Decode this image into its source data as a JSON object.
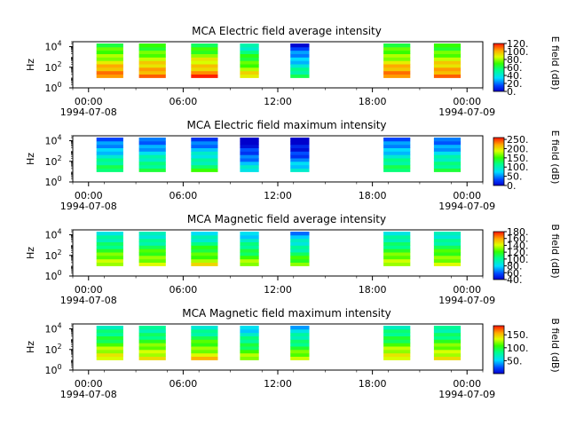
{
  "chart_data": [
    {
      "type": "heatmap",
      "title": "MCA  Electric field average intensity",
      "ylabel": "Hz",
      "y_scale": "log",
      "ylim": [
        1,
        30000
      ],
      "yticks": [
        {
          "exp": "0"
        },
        {
          "exp": "2"
        },
        {
          "exp": "4"
        }
      ],
      "xlim_hours": [
        -1,
        25
      ],
      "xticks": [
        {
          "h": 0,
          "time": "00:00",
          "date": "1994-07-08"
        },
        {
          "h": 6,
          "time": "06:00",
          "date": ""
        },
        {
          "h": 12,
          "time": "12:00",
          "date": ""
        },
        {
          "h": 18,
          "time": "18:00",
          "date": ""
        },
        {
          "h": 24,
          "time": "00:00",
          "date": "1994-07-09"
        }
      ],
      "colorbar": {
        "label": "E field (dB)",
        "min": 0,
        "max": 120,
        "ticks": [
          "0.",
          "20.",
          "40.",
          "60.",
          "80.",
          "100.",
          "120."
        ]
      },
      "blocks": [
        {
          "start": 0.5,
          "end": 2.2,
          "level": 0.7
        },
        {
          "start": 3.2,
          "end": 4.9,
          "level": 0.7
        },
        {
          "start": 6.5,
          "end": 8.2,
          "level": 0.7
        },
        {
          "start": 9.6,
          "end": 10.8,
          "level": 0.55
        },
        {
          "start": 12.8,
          "end": 14.0,
          "level": 0.25
        },
        {
          "start": 18.7,
          "end": 20.4,
          "level": 0.7
        },
        {
          "start": 21.9,
          "end": 23.6,
          "level": 0.7
        }
      ]
    },
    {
      "type": "heatmap",
      "title": "MCA  Electric field maximum intensity",
      "ylabel": "Hz",
      "y_scale": "log",
      "ylim": [
        1,
        30000
      ],
      "yticks": [
        {
          "exp": "0"
        },
        {
          "exp": "2"
        },
        {
          "exp": "4"
        }
      ],
      "xlim_hours": [
        -1,
        25
      ],
      "xticks": [
        {
          "h": 0,
          "time": "00:00",
          "date": "1994-07-08"
        },
        {
          "h": 6,
          "time": "06:00",
          "date": ""
        },
        {
          "h": 12,
          "time": "12:00",
          "date": ""
        },
        {
          "h": 18,
          "time": "18:00",
          "date": ""
        },
        {
          "h": 24,
          "time": "00:00",
          "date": "1994-07-09"
        }
      ],
      "colorbar": {
        "label": "E field (dB)",
        "min": 0,
        "max": 260,
        "ticks": [
          "0.",
          "50.",
          "100.",
          "150.",
          "200.",
          "250."
        ]
      },
      "blocks": [
        {
          "start": 0.5,
          "end": 2.2,
          "level": 0.3
        },
        {
          "start": 3.2,
          "end": 4.9,
          "level": 0.3
        },
        {
          "start": 6.5,
          "end": 8.2,
          "level": 0.3
        },
        {
          "start": 9.6,
          "end": 10.8,
          "level": 0.12
        },
        {
          "start": 12.8,
          "end": 14.0,
          "level": 0.1
        },
        {
          "start": 18.7,
          "end": 20.4,
          "level": 0.3
        },
        {
          "start": 21.9,
          "end": 23.6,
          "level": 0.3
        }
      ]
    },
    {
      "type": "heatmap",
      "title": "MCA  Magnetic field average intensity",
      "ylabel": "Hz",
      "y_scale": "log",
      "ylim": [
        1,
        30000
      ],
      "yticks": [
        {
          "exp": "0"
        },
        {
          "exp": "2"
        },
        {
          "exp": "4"
        }
      ],
      "xlim_hours": [
        -1,
        25
      ],
      "xticks": [
        {
          "h": 0,
          "time": "00:00",
          "date": "1994-07-08"
        },
        {
          "h": 6,
          "time": "06:00",
          "date": ""
        },
        {
          "h": 12,
          "time": "12:00",
          "date": ""
        },
        {
          "h": 18,
          "time": "18:00",
          "date": ""
        },
        {
          "h": 24,
          "time": "00:00",
          "date": "1994-07-09"
        }
      ],
      "colorbar": {
        "label": "B field (dB)",
        "min": 40,
        "max": 180,
        "ticks": [
          "40.",
          "60.",
          "80.",
          "100.",
          "120.",
          "140.",
          "160.",
          "180."
        ]
      },
      "blocks": [
        {
          "start": 0.5,
          "end": 2.2,
          "level": 0.5
        },
        {
          "start": 3.2,
          "end": 4.9,
          "level": 0.5
        },
        {
          "start": 6.5,
          "end": 8.2,
          "level": 0.5
        },
        {
          "start": 9.6,
          "end": 10.8,
          "level": 0.45
        },
        {
          "start": 12.8,
          "end": 14.0,
          "level": 0.4
        },
        {
          "start": 18.7,
          "end": 20.4,
          "level": 0.5
        },
        {
          "start": 21.9,
          "end": 23.6,
          "level": 0.5
        }
      ]
    },
    {
      "type": "heatmap",
      "title": "MCA  Magnetic field maximum intensity",
      "ylabel": "Hz",
      "y_scale": "log",
      "ylim": [
        1,
        30000
      ],
      "yticks": [
        {
          "exp": "0"
        },
        {
          "exp": "2"
        },
        {
          "exp": "4"
        }
      ],
      "xlim_hours": [
        -1,
        25
      ],
      "xticks": [
        {
          "h": 0,
          "time": "00:00",
          "date": "1994-07-08"
        },
        {
          "h": 6,
          "time": "06:00",
          "date": ""
        },
        {
          "h": 12,
          "time": "12:00",
          "date": ""
        },
        {
          "h": 18,
          "time": "18:00",
          "date": ""
        },
        {
          "h": 24,
          "time": "00:00",
          "date": "1994-07-09"
        }
      ],
      "colorbar": {
        "label": "B field (dB)",
        "min": 0,
        "max": 185,
        "ticks": [
          "50.",
          "100.",
          "150."
        ]
      },
      "blocks": [
        {
          "start": 0.5,
          "end": 2.2,
          "level": 0.55
        },
        {
          "start": 3.2,
          "end": 4.9,
          "level": 0.55
        },
        {
          "start": 6.5,
          "end": 8.2,
          "level": 0.55
        },
        {
          "start": 9.6,
          "end": 10.8,
          "level": 0.45
        },
        {
          "start": 12.8,
          "end": 14.0,
          "level": 0.45
        },
        {
          "start": 18.7,
          "end": 20.4,
          "level": 0.55
        },
        {
          "start": 21.9,
          "end": 23.6,
          "level": 0.55
        }
      ]
    }
  ]
}
